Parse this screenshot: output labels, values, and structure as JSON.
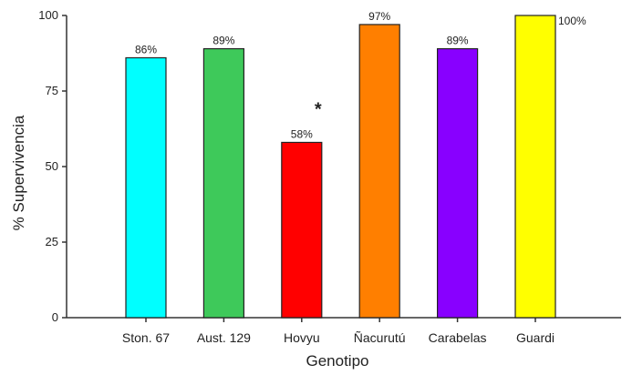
{
  "chart_data": {
    "type": "bar",
    "title": "",
    "xlabel": "Genotipo",
    "ylabel": "% Supervivencia",
    "ylim": [
      0,
      100
    ],
    "yticks": [
      0,
      25,
      50,
      75,
      100
    ],
    "grid": false,
    "categories": [
      "Ston. 67",
      "Aust. 129",
      "Hovyu",
      "Ñacurutú",
      "Carabelas",
      "Guardi"
    ],
    "values": [
      86,
      89,
      58,
      97,
      89,
      100
    ],
    "data_labels": [
      "86%",
      "89%",
      "58%",
      "97%",
      "89%",
      "100%"
    ],
    "colors": [
      "#00ffff",
      "#3ec95a",
      "#ff0000",
      "#ff7f00",
      "#8800ff",
      "#ffff00"
    ],
    "annotations": [
      {
        "category": "Hovyu",
        "text": "*"
      }
    ]
  }
}
